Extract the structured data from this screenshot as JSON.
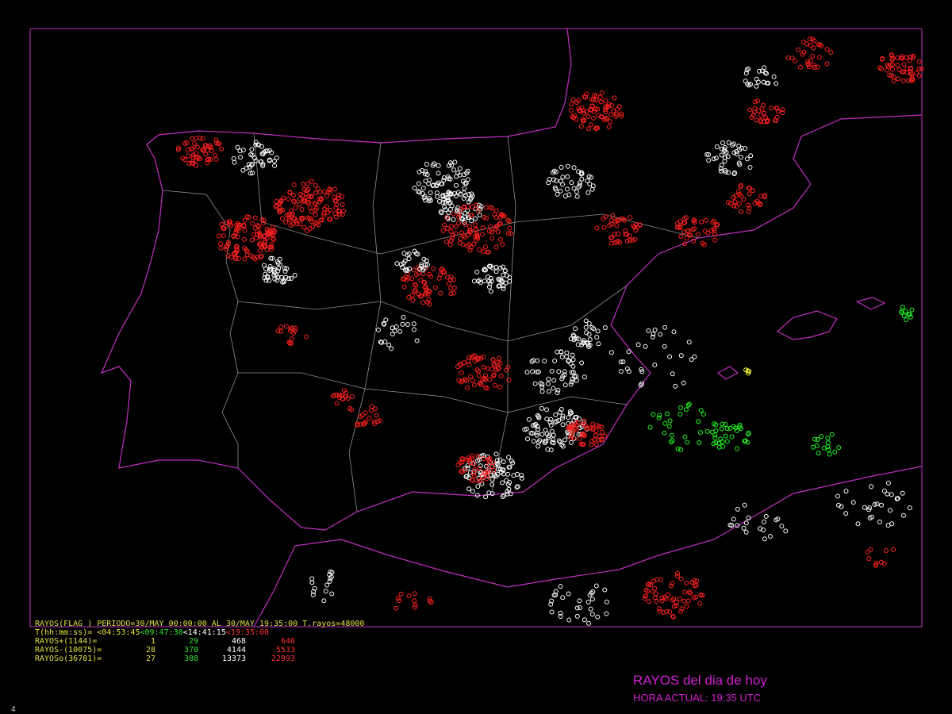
{
  "header": "RAYOS(FLAG ) PERIODO=30/MAY 00:00:00 AL 30/MAY 19:35:00  T.rayos=48000",
  "legend": {
    "time_label": "T(hh:mm:ss)=",
    "intervals": [
      "<04:53:45",
      "<09:47:30",
      "<14:41:15",
      "<19:35:00"
    ],
    "rows": [
      {
        "label": "RAYOS+(1144)=",
        "counts": [
          1,
          29,
          468,
          646
        ]
      },
      {
        "label": "RAYOS-(10075)=",
        "counts": [
          28,
          370,
          4144,
          5533
        ]
      },
      {
        "label": "RAYOSo(36781)=",
        "counts": [
          27,
          388,
          13373,
          22993
        ]
      }
    ]
  },
  "title": "RAYOS del dia de hoy",
  "current_time": "HORA ACTUAL: 19:35 UTC",
  "page_number": "4"
}
